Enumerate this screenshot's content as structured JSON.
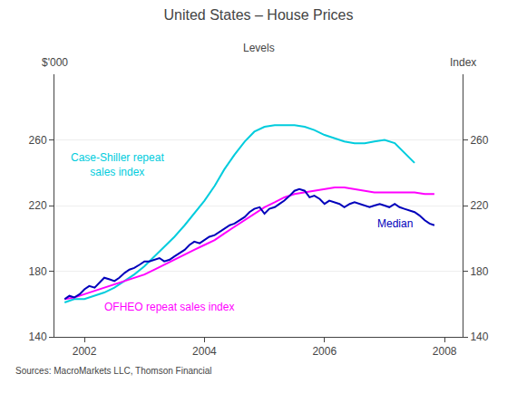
{
  "chart_data": {
    "type": "line",
    "title": "United States – House Prices",
    "subtitle": "Levels",
    "ylabel": "$'000",
    "y2label": "Index",
    "source": "Sources: MacroMarkets LLC, Thomson Financial",
    "xlim": [
      2001.5,
      2008.3
    ],
    "xticks": [
      2002,
      2004,
      2006,
      2008
    ],
    "ylim": [
      140,
      300
    ],
    "yticks": [
      140,
      180,
      220,
      260
    ],
    "y2lim": [
      140,
      300
    ],
    "y2ticks": [
      140,
      180,
      220,
      260
    ],
    "grid": true,
    "series": [
      {
        "color": "#00CCDD",
        "x": [
          2001.67,
          2001.83,
          2002.0,
          2002.17,
          2002.33,
          2002.5,
          2002.67,
          2002.83,
          2003.0,
          2003.17,
          2003.33,
          2003.5,
          2003.67,
          2003.83,
          2004.0,
          2004.17,
          2004.33,
          2004.5,
          2004.67,
          2004.83,
          2005.0,
          2005.17,
          2005.33,
          2005.5,
          2005.67,
          2005.83,
          2006.0,
          2006.17,
          2006.33,
          2006.5,
          2006.67,
          2006.83,
          2007.0,
          2007.17,
          2007.33,
          2007.5
        ],
        "values": [
          161,
          163,
          163,
          165,
          167,
          170,
          174,
          178,
          183,
          189,
          195,
          201,
          208,
          215,
          223,
          232,
          242,
          251,
          259,
          265,
          268,
          269,
          269,
          269,
          268,
          266,
          263,
          261,
          259,
          258,
          258,
          259,
          260,
          258,
          252,
          246
        ]
      },
      {
        "color": "#FF00FF",
        "x": [
          2001.67,
          2001.83,
          2002.0,
          2002.17,
          2002.33,
          2002.5,
          2002.67,
          2002.83,
          2003.0,
          2003.17,
          2003.33,
          2003.5,
          2003.67,
          2003.83,
          2004.0,
          2004.17,
          2004.33,
          2004.5,
          2004.67,
          2004.83,
          2005.0,
          2005.17,
          2005.33,
          2005.5,
          2005.67,
          2005.83,
          2006.0,
          2006.17,
          2006.33,
          2006.5,
          2006.67,
          2006.83,
          2007.0,
          2007.17,
          2007.33,
          2007.5,
          2007.67,
          2007.83
        ],
        "values": [
          163,
          164,
          166,
          168,
          170,
          172,
          174,
          176,
          178,
          181,
          184,
          187,
          190,
          193,
          196,
          199,
          203,
          207,
          211,
          215,
          219,
          222,
          225,
          227,
          228,
          229,
          230,
          231,
          231,
          230,
          229,
          228,
          228,
          228,
          228,
          228,
          227,
          227
        ]
      },
      {
        "color": "#0000BB",
        "x": [
          2001.67,
          2001.75,
          2001.83,
          2001.92,
          2002.0,
          2002.08,
          2002.17,
          2002.25,
          2002.33,
          2002.42,
          2002.5,
          2002.58,
          2002.67,
          2002.75,
          2002.83,
          2002.92,
          2003.0,
          2003.08,
          2003.17,
          2003.25,
          2003.33,
          2003.42,
          2003.5,
          2003.58,
          2003.67,
          2003.75,
          2003.83,
          2003.92,
          2004.0,
          2004.08,
          2004.17,
          2004.25,
          2004.33,
          2004.42,
          2004.5,
          2004.58,
          2004.67,
          2004.75,
          2004.83,
          2004.92,
          2005.0,
          2005.08,
          2005.17,
          2005.25,
          2005.33,
          2005.42,
          2005.5,
          2005.58,
          2005.67,
          2005.75,
          2005.83,
          2005.92,
          2006.0,
          2006.08,
          2006.17,
          2006.25,
          2006.33,
          2006.42,
          2006.5,
          2006.58,
          2006.67,
          2006.75,
          2006.83,
          2006.92,
          2007.0,
          2007.08,
          2007.17,
          2007.25,
          2007.33,
          2007.42,
          2007.5,
          2007.58,
          2007.67,
          2007.75,
          2007.83
        ],
        "values": [
          163,
          165,
          164,
          166,
          169,
          171,
          170,
          173,
          176,
          175,
          174,
          176,
          179,
          181,
          182,
          184,
          186,
          186,
          187,
          188,
          186,
          187,
          189,
          191,
          193,
          196,
          198,
          197,
          199,
          201,
          202,
          204,
          206,
          208,
          209,
          211,
          213,
          216,
          218,
          219,
          215,
          218,
          219,
          221,
          223,
          226,
          229,
          230,
          229,
          225,
          226,
          224,
          221,
          223,
          222,
          221,
          219,
          221,
          222,
          221,
          220,
          219,
          220,
          221,
          220,
          219,
          221,
          219,
          218,
          217,
          216,
          214,
          211,
          209,
          208
        ]
      }
    ],
    "annotations": [
      {
        "text": "Case-Shiller repeat\nsales index",
        "x": 2002.55,
        "y": 245,
        "color": "#00CCDD"
      },
      {
        "text": "OFHEO repeat sales index",
        "x": 2002.3,
        "y": 158,
        "color": "#FF00FF"
      },
      {
        "text": "Median",
        "x": 2006.85,
        "y": 209,
        "color": "#0000BB"
      }
    ]
  }
}
